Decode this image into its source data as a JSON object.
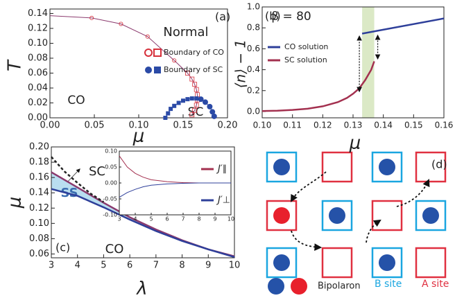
{
  "chart_data": [
    {
      "type": "scatter",
      "label": "(a)",
      "xlabel": "μ",
      "ylabel": "T",
      "annotations": [
        "Normal",
        "CO",
        "SC"
      ],
      "xlim": [
        0,
        0.2
      ],
      "xticks": [
        {
          "value": 0,
          "label": "0.00"
        },
        {
          "value": 0.05,
          "label": "0.05"
        },
        {
          "value": 0.1,
          "label": "0.10"
        },
        {
          "value": 0.15,
          "label": "0.15"
        },
        {
          "value": 0.2,
          "label": "0.20"
        }
      ],
      "ylim": [
        0,
        0.146
      ],
      "yticks": [
        {
          "value": 0,
          "label": "0.00"
        },
        {
          "value": 0.02,
          "label": "0.02"
        },
        {
          "value": 0.04,
          "label": "0.04"
        },
        {
          "value": 0.06,
          "label": "0.06"
        },
        {
          "value": 0.08,
          "label": "0.08"
        },
        {
          "value": 0.1,
          "label": "0.10"
        },
        {
          "value": 0.12,
          "label": "0.12"
        },
        {
          "value": 0.14,
          "label": "0.14"
        }
      ],
      "series": [
        {
          "name": "Boundary of CO",
          "color": "#d62f3a",
          "line_color": "#8b3a6e",
          "filled": false,
          "x": [
            0,
            0.047,
            0.08,
            0.11,
            0.14,
            0.155,
            0.16,
            0.163,
            0.165,
            0.166,
            0.166,
            0.165,
            0.163,
            0.16
          ],
          "values": [
            0.137,
            0.134,
            0.126,
            0.109,
            0.077,
            0.06,
            0.052,
            0.045,
            0.038,
            0.031,
            0.024,
            0.017,
            0.01,
            0.004
          ],
          "markers": [
            null,
            "circle",
            "circle",
            "circle",
            "circle",
            "square",
            "square",
            "square",
            "square",
            "square",
            "square",
            "square",
            "square",
            "square"
          ]
        },
        {
          "name": "Boundary of SC",
          "color": "#2b4aa6",
          "line_color": "#2b4aa6",
          "filled": true,
          "x": [
            0.13,
            0.133,
            0.136,
            0.14,
            0.145,
            0.15,
            0.155,
            0.16,
            0.165,
            0.17,
            0.175,
            0.18,
            0.183,
            0.185
          ],
          "values": [
            0.0,
            0.006,
            0.012,
            0.016,
            0.02,
            0.023,
            0.025,
            0.026,
            0.026,
            0.025,
            0.021,
            0.015,
            0.008,
            0.002
          ],
          "markers": [
            "square",
            "square",
            "square",
            "square",
            "square",
            "square",
            "square",
            "square",
            "square",
            "circle",
            "circle",
            "circle",
            "circle",
            "circle"
          ]
        }
      ]
    },
    {
      "type": "line",
      "label": "(b)",
      "annotations": [
        "β = 80"
      ],
      "xlabel": "μ",
      "ylabel": "⟨n⟩ − 1",
      "xlim": [
        0.1,
        0.16
      ],
      "xticks": [
        {
          "value": 0.1,
          "label": "0.10"
        },
        {
          "value": 0.11,
          "label": "0.11"
        },
        {
          "value": 0.12,
          "label": "0.12"
        },
        {
          "value": 0.13,
          "label": "0.13"
        },
        {
          "value": 0.14,
          "label": "0.14"
        },
        {
          "value": 0.15,
          "label": "0.15"
        },
        {
          "value": 0.16,
          "label": "0.16"
        }
      ],
      "ylim": [
        -0.06,
        1.0
      ],
      "yticks": [
        {
          "value": 0,
          "label": "0.0"
        },
        {
          "value": 0.2,
          "label": "0.2"
        },
        {
          "value": 0.4,
          "label": "0.4"
        },
        {
          "value": 0.6,
          "label": "0.6"
        },
        {
          "value": 0.8,
          "label": "0.8"
        },
        {
          "value": 1.0,
          "label": "1.0"
        }
      ],
      "band": [
        0.133,
        0.137
      ],
      "band_color": "#dbe9c6",
      "series": [
        {
          "name": "CO solution",
          "color": "#2e3f9a",
          "x": [
            0.133,
            0.16
          ],
          "values": [
            0.745,
            0.89
          ]
        },
        {
          "name": "SC solution",
          "color": "#a3304f",
          "x": [
            0.1,
            0.105,
            0.11,
            0.115,
            0.12,
            0.125,
            0.128,
            0.13,
            0.132,
            0.134,
            0.136,
            0.137
          ],
          "values": [
            0.005,
            0.008,
            0.015,
            0.027,
            0.05,
            0.09,
            0.13,
            0.17,
            0.22,
            0.3,
            0.4,
            0.48
          ]
        }
      ]
    },
    {
      "type": "line",
      "label": "(c)",
      "annotations": [
        "SC",
        "SS",
        "CO"
      ],
      "xlabel": "λ",
      "ylabel": "μ",
      "xlim": [
        3,
        10
      ],
      "xticks": [
        3,
        4,
        5,
        6,
        7,
        8,
        9,
        10
      ],
      "ylim": [
        0.055,
        0.2
      ],
      "yticks": [
        {
          "value": 0.06,
          "label": "0.06"
        },
        {
          "value": 0.08,
          "label": "0.08"
        },
        {
          "value": 0.1,
          "label": "0.10"
        },
        {
          "value": 0.12,
          "label": "0.12"
        },
        {
          "value": 0.14,
          "label": "0.14"
        },
        {
          "value": 0.16,
          "label": "0.16"
        },
        {
          "value": 0.18,
          "label": "0.18"
        },
        {
          "value": 0.2,
          "label": "0.20"
        }
      ],
      "fill_color": "#b9def0",
      "series": [
        {
          "color": "#8b3a6e",
          "x": [
            3,
            4,
            5,
            6,
            7,
            8,
            9,
            10
          ],
          "values": [
            0.167,
            0.147,
            0.127,
            0.108,
            0.092,
            0.078,
            0.066,
            0.057
          ]
        },
        {
          "color": "#2e3f9a",
          "x": [
            3,
            4,
            5,
            6,
            7,
            8,
            9,
            10
          ],
          "values": [
            0.145,
            0.136,
            0.121,
            0.105,
            0.09,
            0.077,
            0.066,
            0.056
          ]
        },
        {
          "color": "#222222",
          "dashed": true,
          "x": [
            3,
            3.5,
            4,
            4.5,
            5
          ],
          "values": [
            0.187,
            0.168,
            0.153,
            0.139,
            0.128
          ]
        }
      ]
    },
    {
      "type": "line",
      "xlim": [
        3,
        10
      ],
      "xticks": [
        3,
        4,
        5,
        6,
        7,
        8,
        9,
        10
      ],
      "ylim": [
        -0.1,
        0.1
      ],
      "yticks": [
        {
          "value": -0.1,
          "label": "-0.10"
        },
        {
          "value": -0.05,
          "label": "-0.05"
        },
        {
          "value": 0,
          "label": "0.00"
        },
        {
          "value": 0.05,
          "label": "0.05"
        },
        {
          "value": 0.1,
          "label": "0.10"
        }
      ],
      "series": [
        {
          "name": "J′∥",
          "color": "#a3304f",
          "x": [
            3,
            3.5,
            4,
            4.5,
            5,
            6,
            7,
            8,
            9,
            10
          ],
          "values": [
            0.085,
            0.05,
            0.03,
            0.018,
            0.01,
            0.004,
            0.001,
            0,
            0,
            0
          ]
        },
        {
          "name": "J′⊥",
          "color": "#2e3f9a",
          "x": [
            3,
            3.5,
            4,
            4.5,
            5,
            6,
            7,
            8,
            9,
            10
          ],
          "values": [
            -0.045,
            -0.03,
            -0.02,
            -0.012,
            -0.007,
            -0.003,
            -0.001,
            0,
            0,
            0
          ]
        }
      ]
    }
  ],
  "diagram": {
    "label": "(d)",
    "legend_label": "Bipolaron",
    "site_labels": [
      "B site",
      "A site"
    ]
  }
}
